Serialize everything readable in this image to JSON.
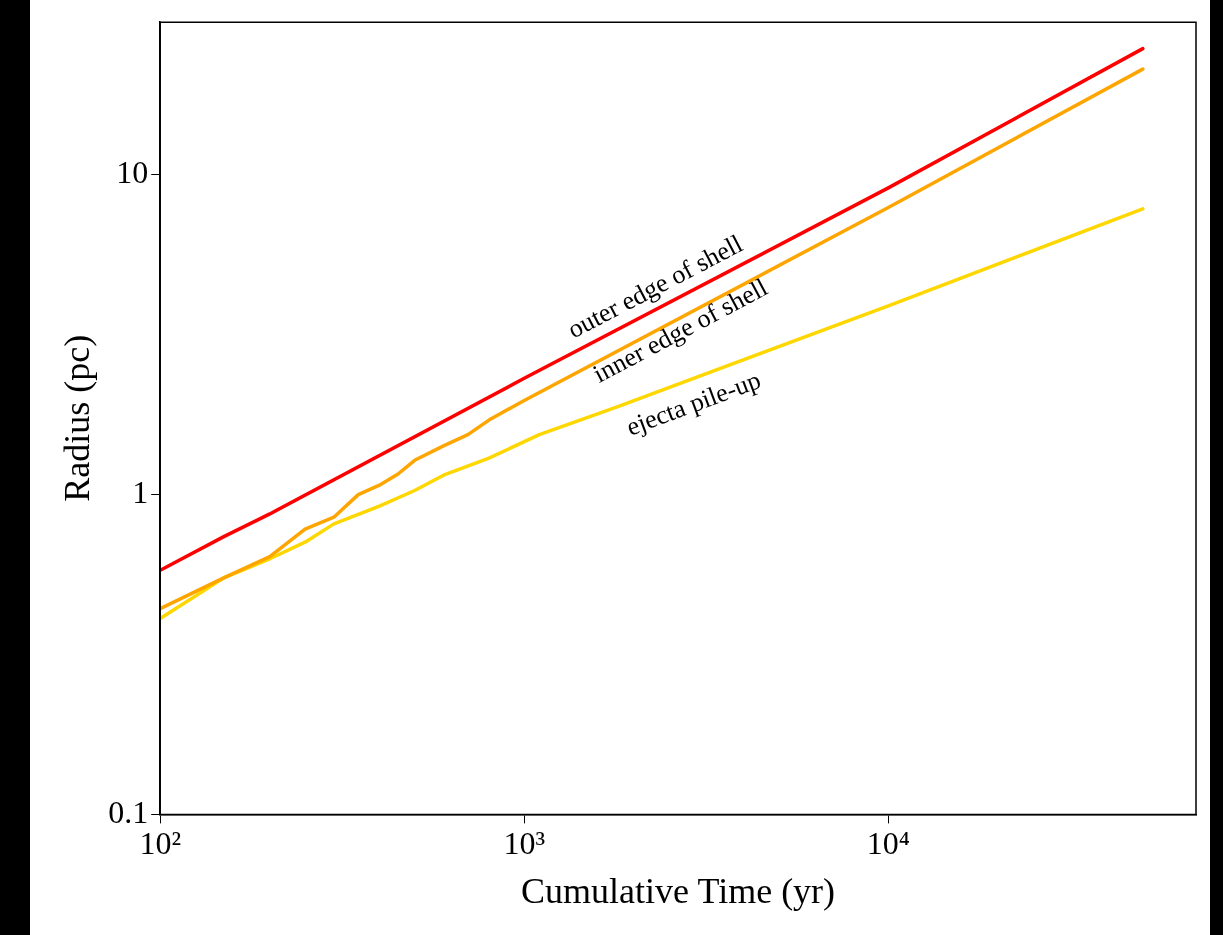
{
  "chart_data": {
    "type": "line",
    "xlabel": "Cumulative Time (yr)",
    "ylabel": "Radius (pc)",
    "log": "xy",
    "grid": false,
    "legend": false,
    "marker": "none",
    "line_style": "solid",
    "xlim": [
      100,
      70000
    ],
    "xticks": [
      {
        "value": 100,
        "label": "10²"
      },
      {
        "value": 1000,
        "label": "10³"
      },
      {
        "value": 10000,
        "label": "10⁴"
      }
    ],
    "ylim": [
      0.1,
      30
    ],
    "yticks": [
      0.1,
      1,
      10
    ],
    "series": [
      {
        "color": "#ff0000",
        "x": [
          100,
          150,
          200,
          1000,
          10000,
          50000
        ],
        "values": [
          0.58,
          0.74,
          0.87,
          2.31,
          9.1,
          24.8
        ]
      },
      {
        "color": "#ffa500",
        "x": [
          100,
          150,
          200,
          250,
          300,
          350,
          400,
          450,
          500,
          600,
          700,
          800,
          1000,
          10000,
          50000
        ],
        "values": [
          0.44,
          0.55,
          0.64,
          0.78,
          0.85,
          1.0,
          1.07,
          1.16,
          1.28,
          1.42,
          1.54,
          1.71,
          1.97,
          7.9,
          21.4
        ]
      },
      {
        "color": "#ffd700",
        "x": [
          100,
          150,
          200,
          250,
          300,
          400,
          500,
          600,
          800,
          1100,
          1800,
          10000,
          50000
        ],
        "values": [
          0.41,
          0.55,
          0.63,
          0.71,
          0.81,
          0.92,
          1.03,
          1.15,
          1.3,
          1.54,
          1.88,
          3.89,
          7.83
        ]
      }
    ],
    "annotations": [
      "outer edge of shell",
      "inner edge of shell",
      "ejecta pile-up"
    ]
  }
}
